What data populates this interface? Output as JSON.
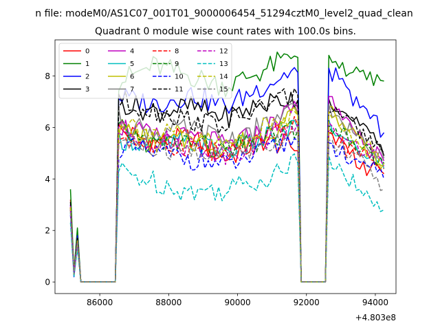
{
  "figure": {
    "suptitle": "n file: modeM0/AS1C07_001T01_9000006454_51294cztM0_level2_quad_clean",
    "title": "Quadrant 0 module wise count rates with 100.0s bins.",
    "offset_text": "+4.803e8"
  },
  "chart_data": {
    "type": "line",
    "title": "Quadrant 0 module wise count rates with 100.0s bins.",
    "xlabel": "",
    "ylabel": "",
    "x_offset": 480300000,
    "xlim": [
      84700,
      94600
    ],
    "ylim": [
      -0.45,
      9.4
    ],
    "x_ticks": [
      86000,
      88000,
      90000,
      92000,
      94000
    ],
    "x_tick_labels": [
      "86000",
      "88000",
      "90000",
      "92000",
      "94000"
    ],
    "y_ticks": [
      0,
      2,
      4,
      6,
      8
    ],
    "y_tick_labels": [
      "0",
      "2",
      "4",
      "6",
      "8"
    ],
    "legend_placement": "top-left",
    "legend_columns": 4,
    "segments": [
      {
        "start": 85150,
        "end": 85450,
        "bins": 4
      },
      {
        "start": 85550,
        "end": 86450,
        "bins": 10
      },
      {
        "start": 86550,
        "end": 91750,
        "bins": 53
      },
      {
        "start": 91850,
        "end": 92550,
        "bins": 8
      },
      {
        "start": 92650,
        "end": 94250,
        "bins": 17
      }
    ],
    "series": [
      {
        "name": "0",
        "color": "#ff0000",
        "dash": "solid",
        "seg1": [
          3.2,
          0.3,
          1.7,
          0.0
        ],
        "active": [
          5.9,
          5.4,
          5.6,
          4.8,
          5.5,
          5.2
        ],
        "tail": [
          5.8,
          5.2,
          4.4,
          4.2
        ]
      },
      {
        "name": "1",
        "color": "#008000",
        "dash": "solid",
        "seg1": [
          3.6,
          0.4,
          2.1,
          0.0
        ],
        "active": [
          7.8,
          8.4,
          8.0,
          7.6,
          8.2,
          8.9
        ],
        "tail": [
          8.8,
          8.2,
          7.9,
          7.8
        ]
      },
      {
        "name": "2",
        "color": "#0000ff",
        "dash": "solid",
        "seg1": [
          3.0,
          0.3,
          1.8,
          0.0
        ],
        "active": [
          7.2,
          6.9,
          7.3,
          6.8,
          7.6,
          8.3
        ],
        "tail": [
          8.3,
          7.4,
          6.6,
          5.8
        ]
      },
      {
        "name": "3",
        "color": "#000000",
        "dash": "solid",
        "seg1": [
          2.9,
          0.3,
          1.7,
          0.0
        ],
        "active": [
          7.0,
          6.6,
          6.8,
          6.4,
          6.9,
          7.2
        ],
        "tail": [
          7.1,
          6.4,
          5.9,
          4.9
        ]
      },
      {
        "name": "4",
        "color": "#bf00bf",
        "dash": "solid",
        "seg1": [
          3.0,
          0.3,
          1.6,
          0.0
        ],
        "active": [
          6.1,
          5.6,
          5.6,
          5.3,
          5.8,
          6.9
        ],
        "tail": [
          7.2,
          6.0,
          5.4,
          4.7
        ]
      },
      {
        "name": "5",
        "color": "#00bfbf",
        "dash": "solid",
        "seg1": [
          2.7,
          0.3,
          1.5,
          0.0
        ],
        "active": [
          5.6,
          5.3,
          5.4,
          5.1,
          5.5,
          6.1
        ],
        "tail": [
          6.3,
          5.5,
          4.9,
          4.4
        ]
      },
      {
        "name": "6",
        "color": "#bfbf00",
        "dash": "solid",
        "seg1": [
          2.8,
          0.3,
          1.6,
          0.0
        ],
        "active": [
          6.0,
          5.4,
          5.5,
          5.2,
          5.7,
          6.6
        ],
        "tail": [
          6.8,
          5.9,
          5.1,
          4.5
        ]
      },
      {
        "name": "7",
        "color": "#808080",
        "dash": "solid",
        "seg1": [
          2.9,
          0.3,
          1.6,
          0.0
        ],
        "active": [
          6.3,
          5.8,
          5.9,
          5.5,
          6.0,
          6.7
        ],
        "tail": [
          6.9,
          6.0,
          5.4,
          4.8
        ]
      },
      {
        "name": "8",
        "color": "#ff0000",
        "dash": "dashed",
        "seg1": [
          2.9,
          0.3,
          1.6,
          0.0
        ],
        "active": [
          5.7,
          5.2,
          5.3,
          4.9,
          5.4,
          6.2
        ],
        "tail": [
          5.9,
          5.1,
          4.9,
          4.4
        ]
      },
      {
        "name": "9",
        "color": "#008000",
        "dash": "dashed",
        "seg1": [
          2.8,
          0.3,
          1.6,
          0.0
        ],
        "active": [
          5.9,
          5.3,
          5.5,
          5.0,
          5.5,
          6.0
        ],
        "tail": [
          6.1,
          5.6,
          5.2,
          4.6
        ]
      },
      {
        "name": "10",
        "color": "#0000ff",
        "dash": "dashed",
        "seg1": [
          2.6,
          0.2,
          1.5,
          0.0
        ],
        "active": [
          5.2,
          5.0,
          4.8,
          4.5,
          5.0,
          5.6
        ],
        "tail": [
          5.4,
          4.9,
          4.6,
          4.0
        ]
      },
      {
        "name": "11",
        "color": "#000000",
        "dash": "dashed",
        "seg1": [
          3.1,
          0.3,
          1.7,
          0.0
        ],
        "active": [
          7.0,
          6.7,
          6.3,
          6.1,
          6.8,
          7.4
        ],
        "tail": [
          6.6,
          6.2,
          5.7,
          5.0
        ]
      },
      {
        "name": "12",
        "color": "#bf00bf",
        "dash": "dashed",
        "seg1": [
          2.8,
          0.3,
          1.6,
          0.0
        ],
        "active": [
          5.9,
          5.5,
          5.3,
          5.0,
          5.5,
          6.3
        ],
        "tail": [
          6.2,
          5.6,
          5.1,
          4.5
        ]
      },
      {
        "name": "13",
        "color": "#00bfbf",
        "dash": "dashed",
        "seg1": [
          2.3,
          0.2,
          1.3,
          0.0
        ],
        "active": [
          4.3,
          3.9,
          3.5,
          3.6,
          4.0,
          4.7
        ],
        "tail": [
          4.9,
          4.1,
          3.6,
          2.8
        ]
      },
      {
        "name": "14",
        "color": "#bfbf00",
        "dash": "dashed",
        "seg1": [
          2.9,
          0.3,
          1.6,
          0.0
        ],
        "active": [
          6.3,
          5.8,
          5.6,
          5.3,
          5.9,
          6.6
        ],
        "tail": [
          6.6,
          5.9,
          5.3,
          4.6
        ]
      },
      {
        "name": "15",
        "color": "#808080",
        "dash": "dashed",
        "seg1": [
          2.7,
          0.3,
          1.5,
          0.0
        ],
        "active": [
          5.5,
          5.1,
          5.1,
          4.9,
          5.3,
          5.9
        ],
        "tail": [
          5.5,
          5.0,
          4.7,
          3.6
        ]
      }
    ]
  }
}
